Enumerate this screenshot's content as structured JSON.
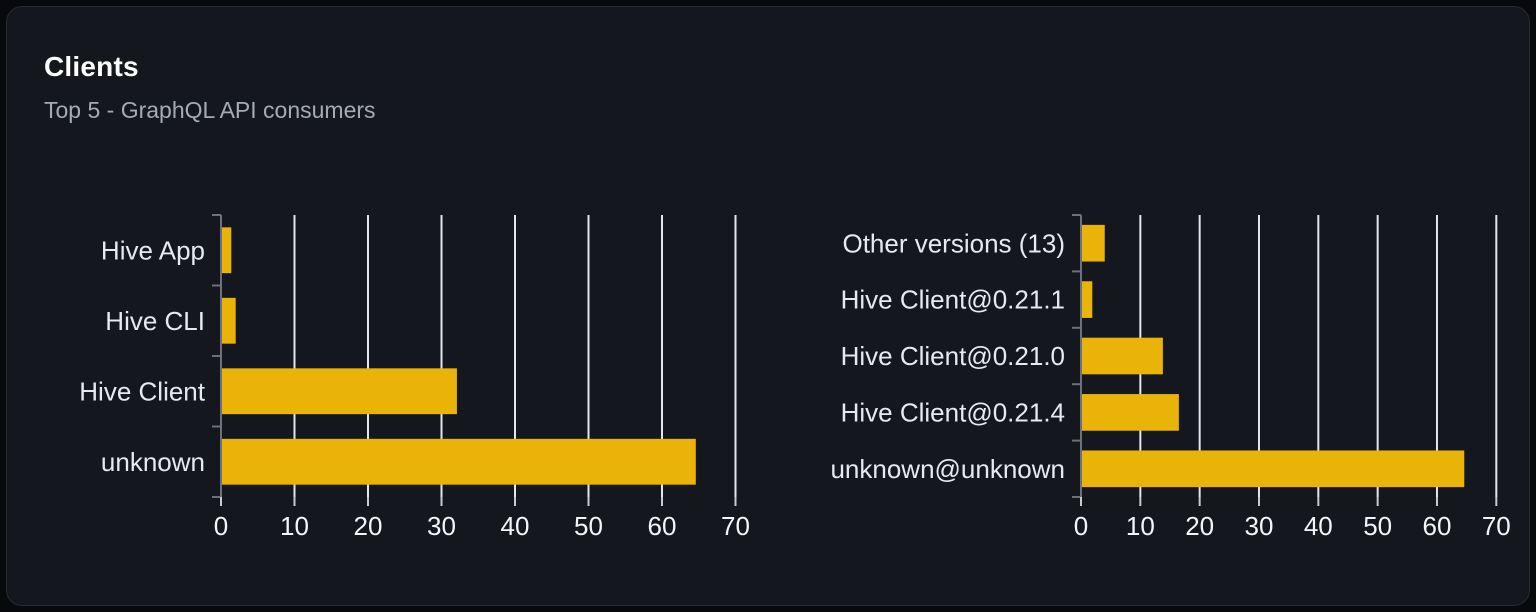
{
  "page": {
    "title": "Clients",
    "subtitle": "Top 5 - GraphQL API consumers"
  },
  "colors": {
    "page_background": "#08090d",
    "card_background": "#14171e",
    "card_border": "#262a32",
    "title": "#ffffff",
    "subtitle": "#a6abb3",
    "bar": "#eab308",
    "grid_line": "#e3e6ec",
    "axis_line": "#6e7179",
    "bottom_tick": "#c9ccd3",
    "category_label": "#e7e9ec",
    "tick_label": "#f4f5f7"
  },
  "chart_data": [
    {
      "type": "bar",
      "orientation": "horizontal",
      "name": "clients-top5",
      "categories": [
        "Hive App",
        "Hive CLI",
        "Hive Client",
        "unknown"
      ],
      "values": [
        1.4,
        2.0,
        32.1,
        64.6
      ],
      "xticks": [
        0,
        10,
        20,
        30,
        40,
        50,
        60,
        70
      ],
      "xlim": [
        0,
        71.2
      ],
      "xlabel": "",
      "ylabel": "",
      "grid": true,
      "legend": false
    },
    {
      "type": "bar",
      "orientation": "horizontal",
      "name": "client-versions-top5",
      "categories": [
        "Other versions (13)",
        "Hive Client@0.21.1",
        "Hive Client@0.21.0",
        "Hive Client@0.21.4",
        "unknown@unknown"
      ],
      "values": [
        4.0,
        1.9,
        13.8,
        16.5,
        64.6
      ],
      "xticks": [
        0,
        10,
        20,
        30,
        40,
        50,
        60,
        70
      ],
      "xlim": [
        0,
        71
      ],
      "xlabel": "",
      "ylabel": "",
      "grid": true,
      "legend": false
    }
  ]
}
